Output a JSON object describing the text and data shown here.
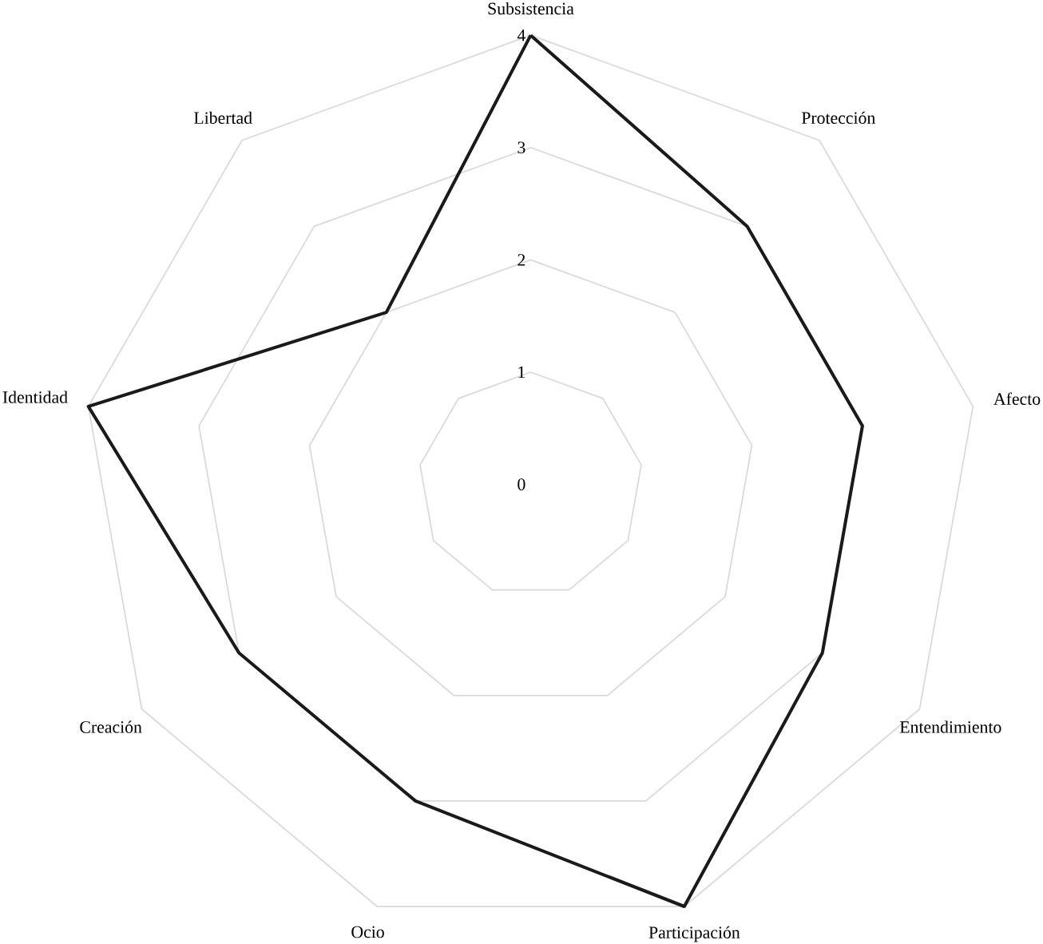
{
  "chart_data": {
    "type": "radar",
    "categories": [
      "Subsistencia",
      "Protección",
      "Afecto",
      "Entendimiento",
      "Participación",
      "Ocio",
      "Creación",
      "Identidad",
      "Libertad"
    ],
    "series": [
      {
        "color": "#1a1a1a",
        "values": [
          4,
          3,
          3,
          3,
          4,
          3,
          3,
          4,
          2
        ]
      }
    ],
    "ylim": [
      0,
      4
    ],
    "yticks": [
      0,
      1,
      2,
      3,
      4
    ],
    "grid": true
  }
}
